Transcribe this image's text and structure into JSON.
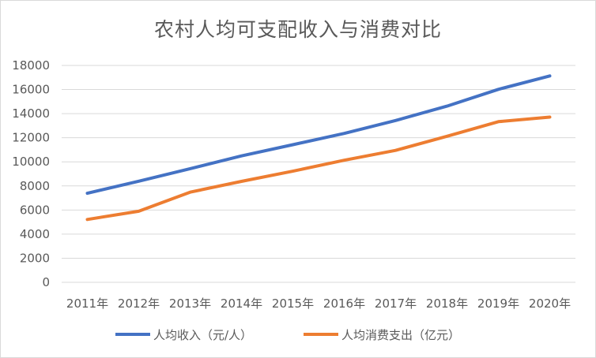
{
  "chart_data": {
    "type": "line",
    "title": "农村人均可支配收入与消费对比",
    "categories": [
      "2011年",
      "2012年",
      "2013年",
      "2014年",
      "2015年",
      "2016年",
      "2017年",
      "2018年",
      "2019年",
      "2020年"
    ],
    "ylim": [
      0,
      18000
    ],
    "yticks": [
      0,
      2000,
      4000,
      6000,
      8000,
      10000,
      12000,
      14000,
      16000,
      18000
    ],
    "grid": true,
    "legend_position": "bottom",
    "series": [
      {
        "name": "人均收入（元/人）",
        "color": "#4472C4",
        "values": [
          7390,
          8390,
          9430,
          10490,
          11420,
          12360,
          13430,
          14620,
          16020,
          17130
        ]
      },
      {
        "name": "人均消费支出（亿元）",
        "color": "#ED7D31",
        "values": [
          5220,
          5900,
          7480,
          8380,
          9220,
          10130,
          10950,
          12120,
          13330,
          13710
        ]
      }
    ]
  }
}
